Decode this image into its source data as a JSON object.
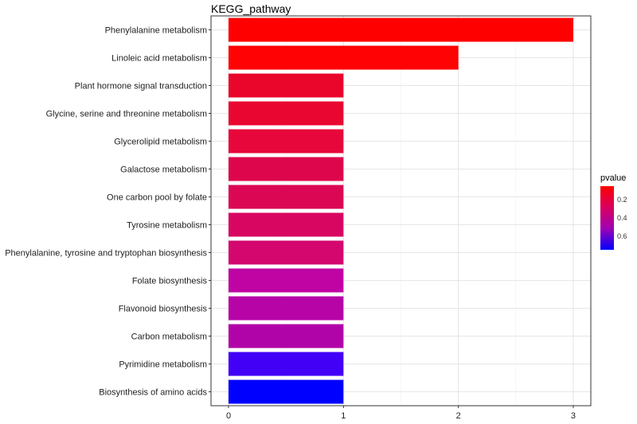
{
  "chart_data": {
    "type": "bar",
    "orientation": "horizontal",
    "title": "KEGG_pathway",
    "xlabel": "",
    "ylabel": "",
    "xlim": [
      0,
      3
    ],
    "xticks": [
      0,
      1,
      2,
      3
    ],
    "grid": true,
    "categories": [
      "Phenylalanine metabolism",
      "Linoleic acid metabolism",
      "Plant hormone signal transduction",
      "Glycine, serine and threonine metabolism",
      "Glycerolipid metabolism",
      "Galactose metabolism",
      "One carbon pool by folate",
      "Tyrosine metabolism",
      "Phenylalanine, tyrosine and tryptophan biosynthesis",
      "Folate biosynthesis",
      "Flavonoid biosynthesis",
      "Carbon metabolism",
      "Pyrimidine metabolism",
      "Biosynthesis of amino acids"
    ],
    "values": [
      3,
      2,
      1,
      1,
      1,
      1,
      1,
      1,
      1,
      1,
      1,
      1,
      1,
      1
    ],
    "pvalue": [
      0.05,
      0.06,
      0.14,
      0.16,
      0.17,
      0.21,
      0.22,
      0.25,
      0.27,
      0.42,
      0.44,
      0.46,
      0.68,
      0.75
    ],
    "colors": [
      "#ff0000",
      "#fe0204",
      "#e9062a",
      "#e90731",
      "#e7073b",
      "#dd064c",
      "#db0755",
      "#d80661",
      "#d3076d",
      "#bf04a3",
      "#b604a6",
      "#b104a8",
      "#4200f7",
      "#0000ff"
    ],
    "legend": {
      "title": "pvalue",
      "placement": "right",
      "ticks": [
        0.2,
        0.4,
        0.6
      ],
      "range": [
        0.05,
        0.75
      ],
      "gradient": [
        "#ff0000",
        "#d80060",
        "#a000b4",
        "#0000ff"
      ]
    }
  }
}
